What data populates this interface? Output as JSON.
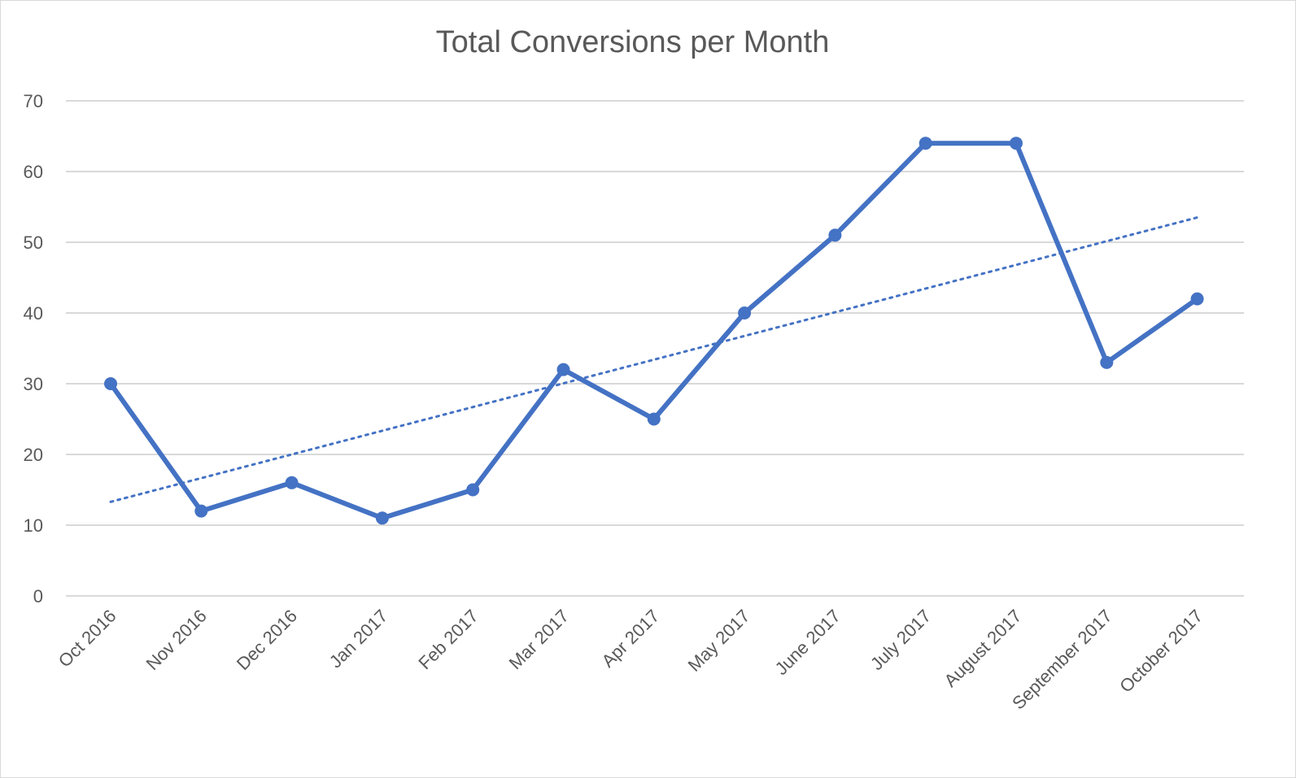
{
  "chart_data": {
    "type": "line",
    "title": "Total Conversions per Month",
    "xlabel": "",
    "ylabel": "",
    "categories": [
      "Oct 2016",
      "Nov 2016",
      "Dec 2016",
      "Jan 2017",
      "Feb 2017",
      "Mar 2017",
      "Apr 2017",
      "May 2017",
      "June 2017",
      "July 2017",
      "August 2017",
      "September 2017",
      "October 2017"
    ],
    "series": [
      {
        "values": [
          30,
          12,
          16,
          11,
          15,
          32,
          25,
          40,
          51,
          64,
          64,
          33,
          42
        ],
        "color": "#4472c4",
        "markers": true
      }
    ],
    "trendline": {
      "type": "linear",
      "style": "dotted",
      "color": "#4472c4",
      "start_value": 13.3,
      "end_value": 53.5
    },
    "ylim": [
      0,
      70
    ],
    "yticks": [
      0,
      10,
      20,
      30,
      40,
      50,
      60,
      70
    ],
    "grid": true,
    "legend": "none"
  }
}
